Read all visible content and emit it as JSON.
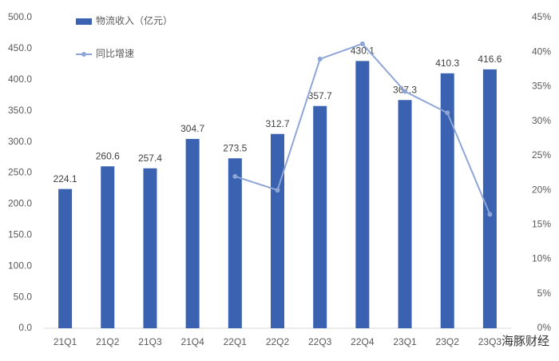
{
  "chart_data": {
    "type": "bar-line",
    "categories": [
      "21Q1",
      "21Q2",
      "21Q3",
      "21Q4",
      "22Q1",
      "22Q2",
      "22Q3",
      "22Q4",
      "23Q1",
      "23Q2",
      "23Q3"
    ],
    "series": [
      {
        "name": "物流收入（亿元）",
        "type": "bar",
        "color": "#3a62b0",
        "values": [
          224.1,
          260.6,
          257.4,
          304.7,
          273.5,
          312.7,
          357.7,
          430.1,
          367.3,
          410.3,
          416.6
        ]
      },
      {
        "name": "同比增速",
        "type": "line",
        "axis": "y2",
        "color": "#8ea5d8",
        "values": [
          null,
          null,
          null,
          null,
          22,
          20,
          39,
          41.2,
          34.3,
          31.2,
          16.5
        ]
      }
    ],
    "ylim": [
      0,
      500
    ],
    "yticks": [
      {
        "value": 0,
        "label": "0.0"
      },
      {
        "value": 50,
        "label": "50.0"
      },
      {
        "value": 100,
        "label": "100.0"
      },
      {
        "value": 150,
        "label": "150.0"
      },
      {
        "value": 200,
        "label": "200.0"
      },
      {
        "value": 250,
        "label": "250.0"
      },
      {
        "value": 300,
        "label": "300.0"
      },
      {
        "value": 350,
        "label": "350.0"
      },
      {
        "value": 400,
        "label": "400.0"
      },
      {
        "value": 450,
        "label": "450.0"
      },
      {
        "value": 500,
        "label": "500.0"
      }
    ],
    "y2lim": [
      0,
      45
    ],
    "y2ticks": [
      {
        "value": 0,
        "label": "0%"
      },
      {
        "value": 5,
        "label": "5%"
      },
      {
        "value": 10,
        "label": "10%"
      },
      {
        "value": 15,
        "label": "15%"
      },
      {
        "value": 20,
        "label": "20%"
      },
      {
        "value": 25,
        "label": "25%"
      },
      {
        "value": 30,
        "label": "30%"
      },
      {
        "value": 35,
        "label": "35%"
      },
      {
        "value": 40,
        "label": "40%"
      },
      {
        "value": 45,
        "label": "45%"
      }
    ],
    "watermark": "海豚财经"
  }
}
